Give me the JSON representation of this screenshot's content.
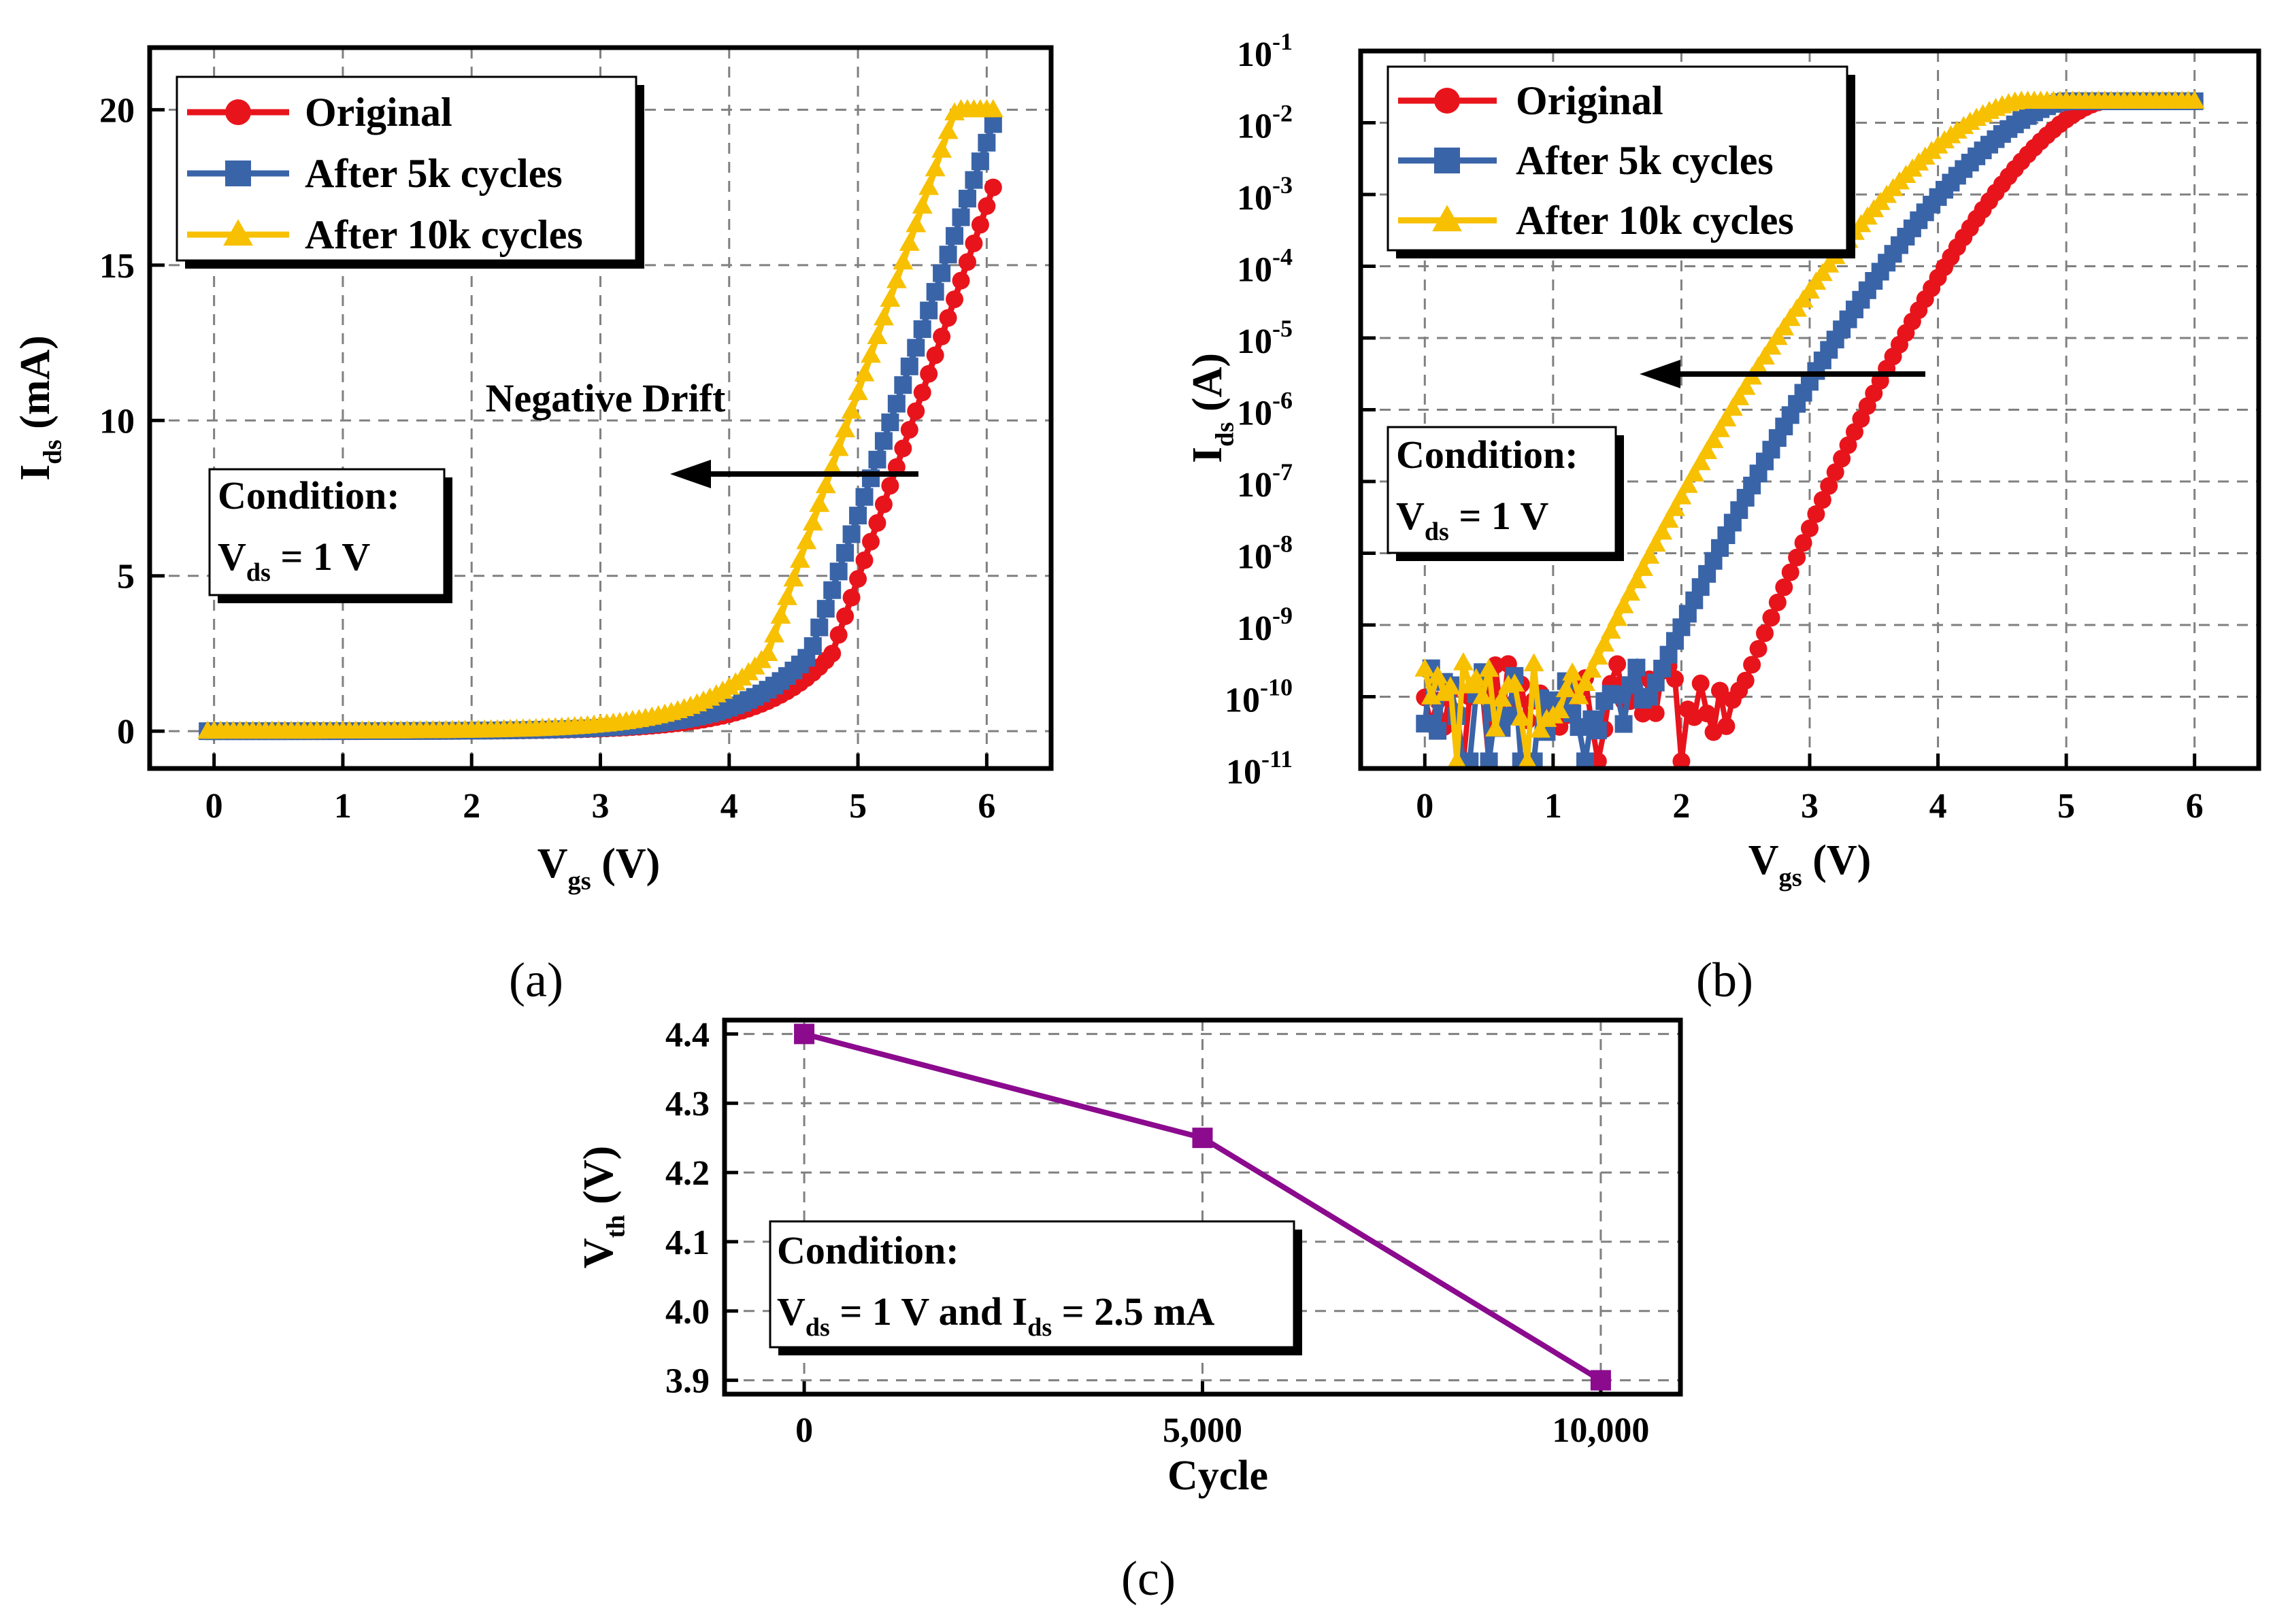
{
  "chart_data": [
    {
      "id": "a",
      "type": "line",
      "caption": "(a)",
      "xlabel": {
        "main": "V",
        "sub": "gs",
        "rest": " (V)"
      },
      "ylabel": {
        "main": "I",
        "sub": "ds",
        "rest": " (mA)"
      },
      "xlim": [
        -0.5,
        6.5
      ],
      "ylim": [
        -1.2,
        22
      ],
      "xticks": [
        0,
        1,
        2,
        3,
        4,
        5,
        6
      ],
      "xtick_labels": [
        "0",
        "1",
        "2",
        "3",
        "4",
        "5",
        "6"
      ],
      "yticks": [
        0,
        5,
        10,
        15,
        20
      ],
      "ytick_labels": [
        "0",
        "5",
        "10",
        "15",
        "20"
      ],
      "grid": true,
      "legend": {
        "position": "top-left",
        "entries": [
          "Original",
          "After 5k cycles",
          "After 10k cycles"
        ]
      },
      "annotations": {
        "drift_text": "Negative Drift",
        "condition_title": "Condition:",
        "condition_var": "V",
        "condition_sub": "ds",
        "condition_rest": " = 1 V"
      },
      "series": [
        {
          "name": "Original",
          "color": "#e8141c",
          "marker": "circle",
          "vth": 4.8,
          "slope": 12.0,
          "sat": 20.0
        },
        {
          "name": "After 5k cycles",
          "color": "#3a64a8",
          "marker": "square",
          "vth": 4.63,
          "slope": 12.0,
          "sat": 20.0
        },
        {
          "name": "After 10k cycles",
          "color": "#f7c000",
          "marker": "triangle",
          "vth": 4.3,
          "slope": 12.0,
          "sat": 20.0
        }
      ]
    },
    {
      "id": "b",
      "type": "line",
      "scale": "log",
      "caption": "(b)",
      "xlabel": {
        "main": "V",
        "sub": "gs",
        "rest": " (V)"
      },
      "ylabel": {
        "main": "I",
        "sub": "ds",
        "rest": " (A)"
      },
      "xlim": [
        -0.5,
        6.5
      ],
      "ylim_log10": [
        -11,
        -1
      ],
      "xticks": [
        0,
        1,
        2,
        3,
        4,
        5,
        6
      ],
      "xtick_labels": [
        "0",
        "1",
        "2",
        "3",
        "4",
        "5",
        "6"
      ],
      "yticks_exp": [
        -11,
        -10,
        -9,
        -8,
        -7,
        -6,
        -5,
        -4,
        -3,
        -2,
        -1
      ],
      "ytick_base": "10",
      "ytick_exps": [
        "-11",
        "-10",
        "-9",
        "-8",
        "-7",
        "-6",
        "-5",
        "-4",
        "-3",
        "-2",
        "-1"
      ],
      "grid": true,
      "legend": {
        "position": "top-left",
        "entries": [
          "Original",
          "After 5k cycles",
          "After 10k cycles"
        ]
      },
      "annotations": {
        "condition_title": "Condition:",
        "condition_var": "V",
        "condition_sub": "ds",
        "condition_rest": " = 1 V"
      },
      "series": [
        {
          "name": "Original",
          "color": "#e8141c",
          "marker": "circle",
          "v_on": 2.45,
          "v_sat": 5.3,
          "noise_end": 2.45
        },
        {
          "name": "After 5k cycles",
          "color": "#3a64a8",
          "marker": "square",
          "v_on": 1.75,
          "v_sat": 5.0,
          "noise_end": 1.75
        },
        {
          "name": "After 10k cycles",
          "color": "#f7c000",
          "marker": "triangle",
          "v_on": 1.2,
          "v_sat": 4.65,
          "noise_end": 1.2
        }
      ]
    },
    {
      "id": "c",
      "type": "line",
      "caption": "(c)",
      "xlabel": {
        "main": "Cycle",
        "sub": "",
        "rest": ""
      },
      "ylabel": {
        "main": "V",
        "sub": "th",
        "rest": " (V)"
      },
      "xlim": [
        -1000,
        11000
      ],
      "ylim": [
        3.88,
        4.42
      ],
      "xticks": [
        0,
        5000,
        10000
      ],
      "xtick_labels": [
        "0",
        "5,000",
        "10,000"
      ],
      "yticks": [
        3.9,
        4.0,
        4.1,
        4.2,
        4.3,
        4.4
      ],
      "ytick_labels": [
        "3.9",
        "4.0",
        "4.1",
        "4.2",
        "4.3",
        "4.4"
      ],
      "grid": true,
      "annotations": {
        "condition_title": "Condition:",
        "condition_var": "V",
        "condition_sub": "ds",
        "condition_mid": " = 1 V and I",
        "condition_sub2": "ds",
        "condition_rest": " = 2.5 mA"
      },
      "series": [
        {
          "name": "Vth",
          "color": "#8b0a8e",
          "marker": "square",
          "x": [
            0,
            5000,
            10000
          ],
          "y": [
            4.4,
            4.25,
            3.9
          ]
        }
      ]
    }
  ]
}
